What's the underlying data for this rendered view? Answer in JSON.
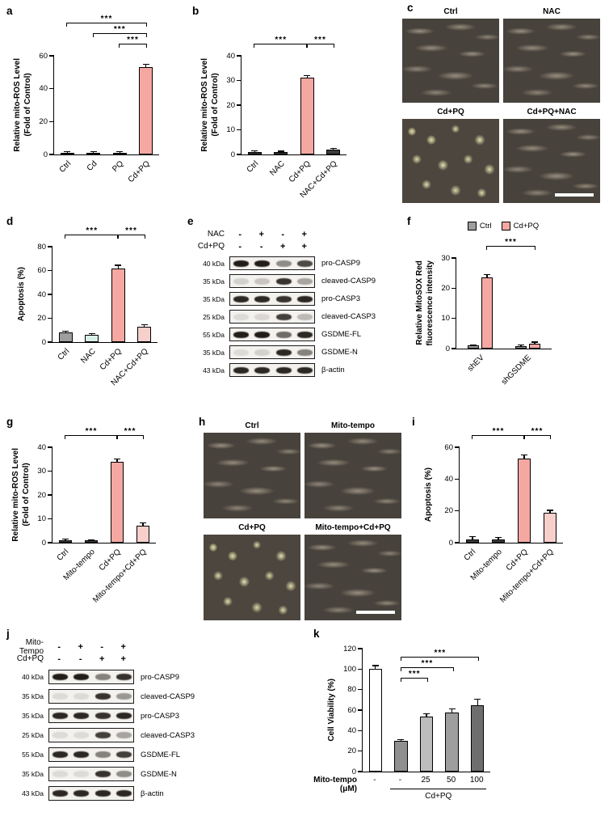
{
  "figure": {
    "panel_letters": {
      "a": "a",
      "b": "b",
      "c": "c",
      "d": "d",
      "e": "e",
      "f": "f",
      "g": "g",
      "h": "h",
      "i": "i",
      "j": "j",
      "k": "k"
    }
  },
  "chart_data": [
    {
      "panel": "a",
      "type": "bar",
      "ylabel": "Relative mito-ROS Level\n(Fold of Control)",
      "categories": [
        "Ctrl",
        "Cd",
        "PQ",
        "Cd+PQ"
      ],
      "values": [
        1,
        1,
        1,
        53
      ],
      "errors": [
        0.3,
        0.3,
        0.3,
        1.5
      ],
      "colors": [
        "#3d3d3d",
        "#3d3d3d",
        "#3d3d3d",
        "#F5A8A2"
      ],
      "ylim": [
        0,
        60
      ],
      "yticks": [
        0,
        20,
        40,
        60
      ],
      "significance": [
        {
          "from": 0,
          "to": 3,
          "label": "***",
          "row": 0
        },
        {
          "from": 1,
          "to": 3,
          "label": "***",
          "row": 1
        },
        {
          "from": 2,
          "to": 3,
          "label": "***",
          "row": 2
        }
      ]
    },
    {
      "panel": "b",
      "type": "bar",
      "ylabel": "Relative mito-ROS Level\n(Fold of Control)",
      "categories": [
        "Ctrl",
        "NAC",
        "Cd+PQ",
        "NAC+Cd+PQ"
      ],
      "values": [
        1,
        0.9,
        31,
        2
      ],
      "errors": [
        0.2,
        0.2,
        0.8,
        0.3
      ],
      "colors": [
        "#3d3d3d",
        "#3d3d3d",
        "#F5A8A2",
        "#3d3d3d"
      ],
      "ylim": [
        0,
        40
      ],
      "yticks": [
        0,
        10,
        20,
        30,
        40
      ],
      "significance": [
        {
          "from": 0,
          "to": 2,
          "label": "***",
          "row": 0
        },
        {
          "from": 2,
          "to": 3,
          "label": "***",
          "row": 0
        }
      ]
    },
    {
      "panel": "d",
      "type": "bar",
      "ylabel": "Apoptosis (%)",
      "categories": [
        "Ctrl",
        "NAC",
        "Cd+PQ",
        "NAC+Cd+PQ"
      ],
      "values": [
        8,
        6,
        62,
        13
      ],
      "errors": [
        1,
        1,
        2,
        1
      ],
      "colors": [
        "#9E9E9E",
        "#D8EFE9",
        "#F5A8A2",
        "#F7CFCB"
      ],
      "ylim": [
        0,
        80
      ],
      "yticks": [
        0,
        20,
        40,
        60,
        80
      ],
      "significance": [
        {
          "from": 0,
          "to": 2,
          "label": "***",
          "row": 0
        },
        {
          "from": 2,
          "to": 3,
          "label": "***",
          "row": 0
        }
      ]
    },
    {
      "panel": "f",
      "type": "grouped-bar",
      "ylabel": "Relative MitoSOX Red\nfluorescence intensity",
      "categories": [
        "shEV",
        "shGSDME"
      ],
      "series": [
        {
          "name": "Ctrl",
          "color": "#9E9E9E",
          "values": [
            1,
            0.8
          ],
          "errors": [
            0.15,
            0.15
          ]
        },
        {
          "name": "Cd+PQ",
          "color": "#F5A8A2",
          "values": [
            23.5,
            1.6
          ],
          "errors": [
            0.8,
            0.4
          ]
        }
      ],
      "ylim": [
        0,
        30
      ],
      "yticks": [
        0,
        10,
        20,
        30
      ],
      "legend": [
        "Ctrl",
        "Cd+PQ"
      ],
      "significance": [
        {
          "fromG": 0,
          "fromS": 1,
          "toG": 1,
          "toS": 1,
          "label": "***",
          "row": 0
        }
      ]
    },
    {
      "panel": "g",
      "type": "bar",
      "ylabel": "Relative mito-ROS Level\n(Fold of Control)",
      "categories": [
        "Ctrl",
        "Mito-tempo",
        "Cd+PQ",
        "Mito-tempo+Cd+PQ"
      ],
      "values": [
        1,
        0.9,
        34,
        7
      ],
      "errors": [
        0.2,
        0.2,
        1,
        1
      ],
      "colors": [
        "#3d3d3d",
        "#3d3d3d",
        "#F5A8A2",
        "#F7CFCB"
      ],
      "ylim": [
        0,
        40
      ],
      "yticks": [
        0,
        10,
        20,
        30,
        40
      ],
      "significance": [
        {
          "from": 0,
          "to": 2,
          "label": "***",
          "row": 0
        },
        {
          "from": 2,
          "to": 3,
          "label": "***",
          "row": 0
        }
      ]
    },
    {
      "panel": "i",
      "type": "bar",
      "ylabel": "Apoptosis (%)",
      "categories": [
        "Ctrl",
        "Mito-tempo",
        "Cd+PQ",
        "Mito-tempo+Cd+PQ"
      ],
      "values": [
        2,
        2,
        53,
        19
      ],
      "errors": [
        1.5,
        1,
        2,
        1
      ],
      "colors": [
        "#3d3d3d",
        "#3d3d3d",
        "#F5A8A2",
        "#F7CFCB"
      ],
      "ylim": [
        0,
        60
      ],
      "yticks": [
        0,
        20,
        40,
        60
      ],
      "significance": [
        {
          "from": 0,
          "to": 2,
          "label": "***",
          "row": 0
        },
        {
          "from": 2,
          "to": 3,
          "label": "***",
          "row": 0
        }
      ]
    },
    {
      "panel": "k",
      "type": "bar",
      "ylabel": "Cell Viability (%)",
      "categories": [
        "-",
        "-",
        "25",
        "50",
        "100"
      ],
      "values": [
        100,
        30,
        54,
        58,
        65
      ],
      "errors": [
        3,
        1,
        2,
        3,
        5
      ],
      "colors": [
        "#FFFFFF",
        "#8F8F8F",
        "#BDBDBD",
        "#9E9E9E",
        "#6E6E6E"
      ],
      "ylim": [
        0,
        120
      ],
      "yticks": [
        0,
        20,
        40,
        60,
        80,
        100,
        120
      ],
      "sig_inplot": true,
      "xaxis": {
        "style": "dose",
        "label_line1": "Mito-tempo",
        "label_line2": "(μM)",
        "ticks": [
          "-",
          "-",
          "25",
          "50",
          "100"
        ],
        "group": {
          "from": 1,
          "to": 4,
          "label": "Cd+PQ"
        }
      },
      "significance": [
        {
          "from": 1,
          "to": 4,
          "label": "***",
          "row": 0
        },
        {
          "from": 1,
          "to": 3,
          "label": "***",
          "row": 1
        },
        {
          "from": 1,
          "to": 2,
          "label": "***",
          "row": 2
        }
      ]
    }
  ],
  "micrographs": {
    "c": {
      "tiles": [
        {
          "label": "Ctrl",
          "variant": "normal"
        },
        {
          "label": "NAC",
          "variant": "normal"
        },
        {
          "label": "Cd+PQ",
          "variant": "damaged"
        },
        {
          "label": "Cd+PQ+NAC",
          "variant": "normal"
        }
      ],
      "scalebar_tile": 3
    },
    "h": {
      "tiles": [
        {
          "label": "Ctrl",
          "variant": "normal"
        },
        {
          "label": "Mito-tempo",
          "variant": "normal"
        },
        {
          "label": "Cd+PQ",
          "variant": "damaged"
        },
        {
          "label": "Mito-tempo+Cd+PQ",
          "variant": "normal"
        }
      ],
      "scalebar_tile": 3
    }
  },
  "blots": {
    "e": {
      "treatments": [
        {
          "name": "NAC",
          "signs": [
            "-",
            "+",
            "-",
            "+"
          ]
        },
        {
          "name": "Cd+PQ",
          "signs": [
            "-",
            "-",
            "+",
            "+"
          ]
        }
      ],
      "rows": [
        {
          "kda": "40 kDa",
          "label": "pro-CASP9",
          "bands": [
            0.95,
            0.95,
            0.45,
            0.75
          ]
        },
        {
          "kda": "35 kDa",
          "label": "cleaved-CASP9",
          "bands": [
            0.15,
            0.2,
            0.85,
            0.35
          ]
        },
        {
          "kda": "35 kDa",
          "label": "pro-CASP3",
          "bands": [
            0.9,
            0.9,
            0.85,
            0.9
          ]
        },
        {
          "kda": "25 kDa",
          "label": "cleaved-CASP3",
          "bands": [
            0.1,
            0.12,
            0.8,
            0.25
          ]
        },
        {
          "kda": "55 kDa",
          "label": "GSDME-FL",
          "bands": [
            0.95,
            0.95,
            0.6,
            0.9
          ]
        },
        {
          "kda": "35 kDa",
          "label": "GSDME-N",
          "bands": [
            0.1,
            0.15,
            0.9,
            0.5
          ]
        },
        {
          "kda": "43 kDa",
          "label": "β-actin",
          "bands": [
            0.9,
            0.9,
            0.9,
            0.9
          ]
        }
      ]
    },
    "j": {
      "treatments": [
        {
          "name": "Mito-Tempo",
          "signs": [
            "-",
            "+",
            "-",
            "+"
          ]
        },
        {
          "name": "Cd+PQ",
          "signs": [
            "-",
            "-",
            "+",
            "+"
          ]
        }
      ],
      "rows": [
        {
          "kda": "40 kDa",
          "label": "pro-CASP9",
          "bands": [
            0.95,
            0.95,
            0.5,
            0.85
          ]
        },
        {
          "kda": "35 kDa",
          "label": "cleaved-CASP9",
          "bands": [
            0.1,
            0.1,
            0.85,
            0.4
          ]
        },
        {
          "kda": "35 kDa",
          "label": "pro-CASP3",
          "bands": [
            0.9,
            0.9,
            0.85,
            0.9
          ]
        },
        {
          "kda": "25 kDa",
          "label": "cleaved-CASP3",
          "bands": [
            0.1,
            0.1,
            0.8,
            0.35
          ]
        },
        {
          "kda": "55 kDa",
          "label": "GSDME-FL",
          "bands": [
            0.9,
            0.9,
            0.5,
            0.8
          ]
        },
        {
          "kda": "35 kDa",
          "label": "GSDME-N",
          "bands": [
            0.1,
            0.1,
            0.85,
            0.45
          ]
        },
        {
          "kda": "43 kDa",
          "label": "β-actin",
          "bands": [
            0.9,
            0.9,
            0.9,
            0.9
          ]
        }
      ]
    }
  }
}
